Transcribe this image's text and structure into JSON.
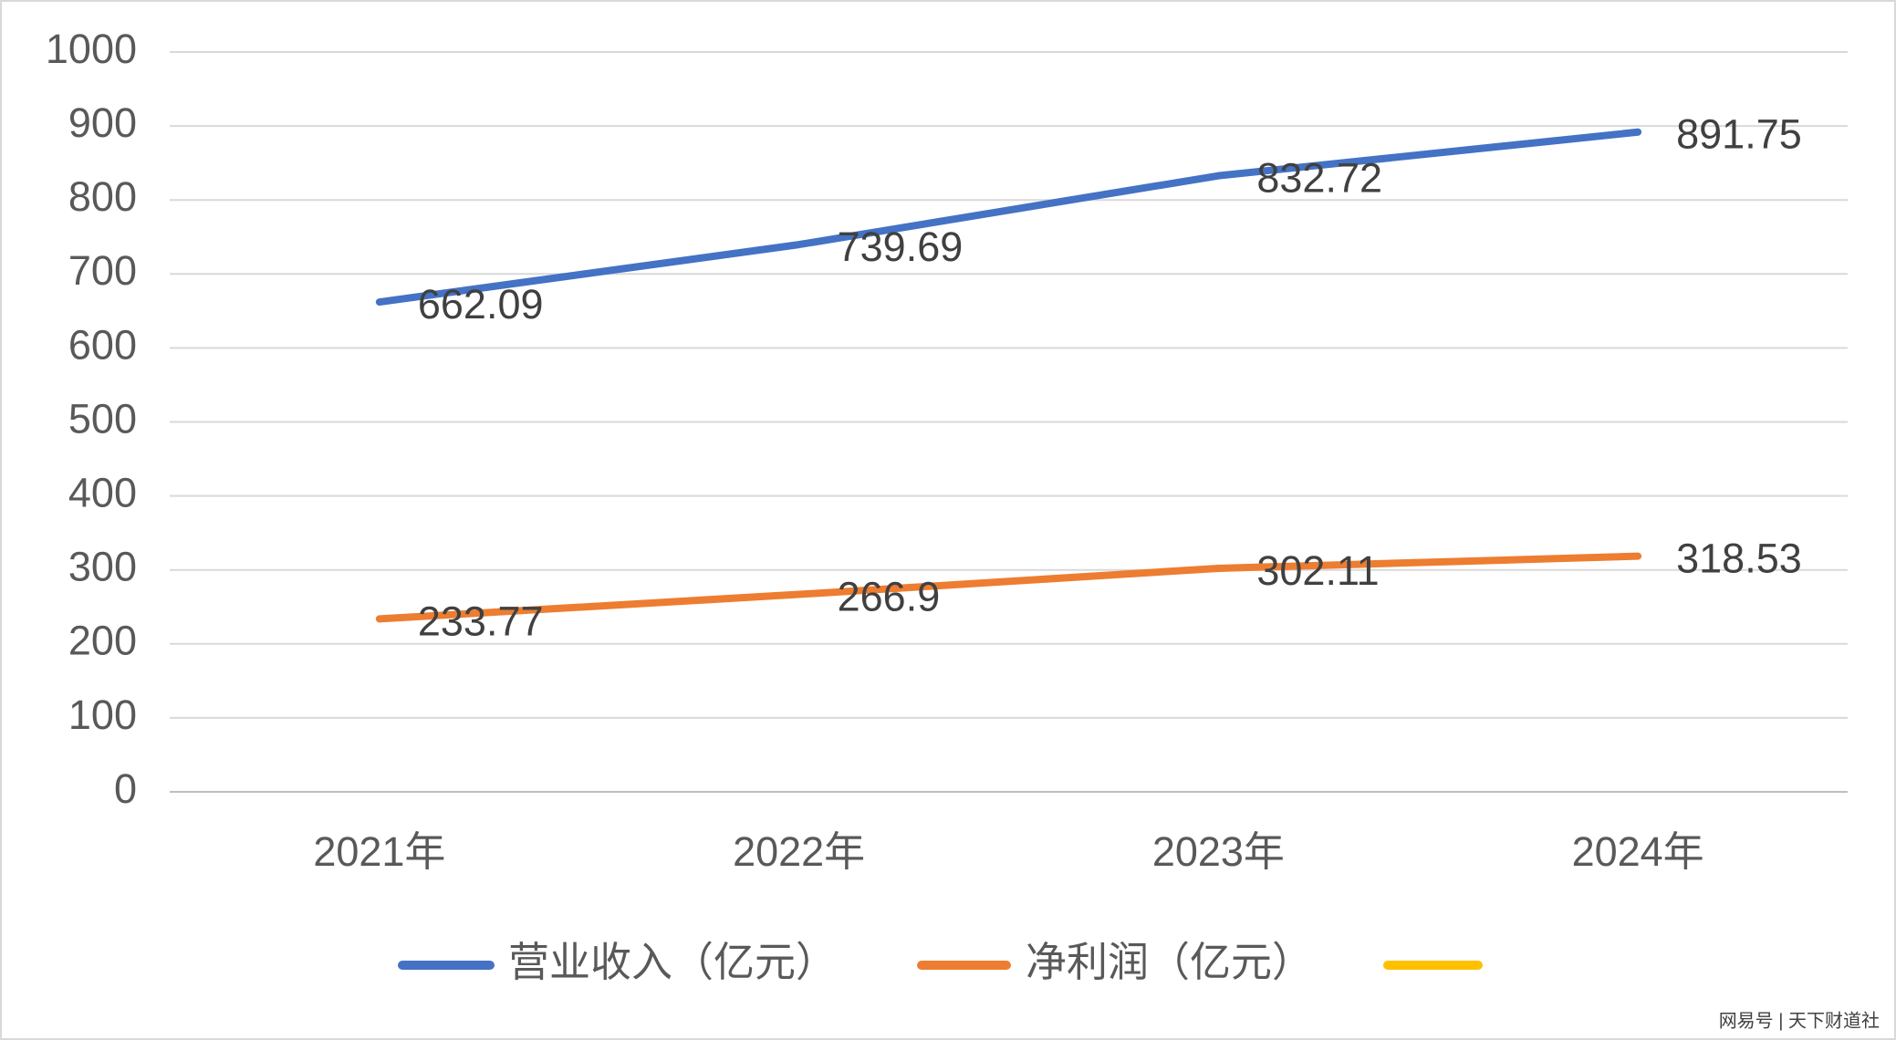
{
  "chart_data": {
    "type": "line",
    "categories": [
      "2021年",
      "2022年",
      "2023年",
      "2024年"
    ],
    "series": [
      {
        "name": "营业收入（亿元）",
        "color": "#4472c4",
        "values": [
          662.09,
          739.69,
          832.72,
          891.75
        ]
      },
      {
        "name": "净利润（亿元）",
        "color": "#ed7d31",
        "values": [
          233.77,
          266.9,
          302.11,
          318.53
        ]
      }
    ],
    "ylim": [
      0,
      1000
    ],
    "yticks": [
      0,
      100,
      200,
      300,
      400,
      500,
      600,
      700,
      800,
      900,
      1000
    ],
    "grid": true,
    "legend": "bottom",
    "watermark": "网易号 | 天下财道社"
  }
}
